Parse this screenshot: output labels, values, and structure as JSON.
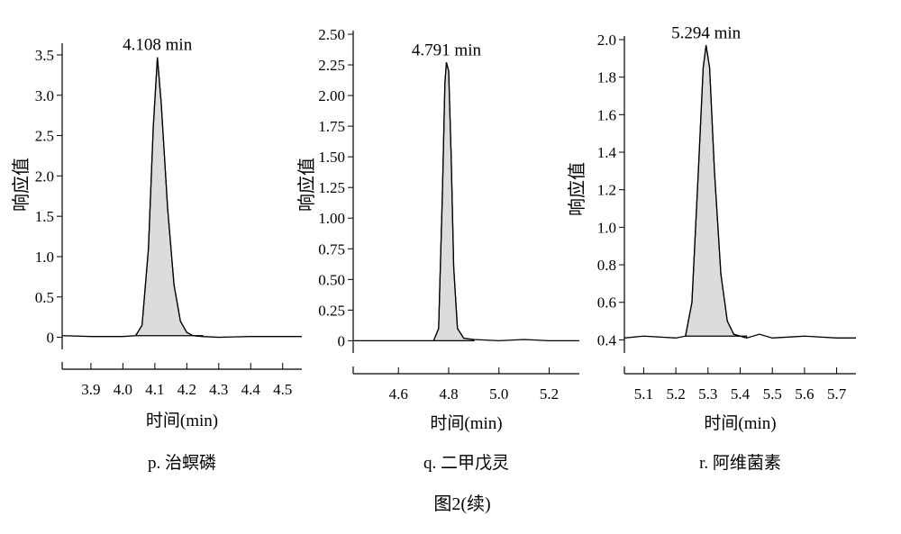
{
  "figure_caption": "图2(续)",
  "chart_data": [
    {
      "type": "line",
      "ylabel": "响应值",
      "xlabel": "时间(min)",
      "caption": "p. 治螟磷",
      "xlim": [
        3.81,
        4.56
      ],
      "ylim": [
        -0.15,
        3.6
      ],
      "xticks": [
        3.9,
        4.0,
        4.1,
        4.2,
        4.3,
        4.4,
        4.5
      ],
      "xtick_labels": [
        "3.9",
        "4.0",
        "4.1",
        "4.2",
        "4.3",
        "4.4",
        "4.5"
      ],
      "yticks": [
        0,
        0.5,
        1.0,
        1.5,
        2.0,
        2.5,
        3.0,
        3.5
      ],
      "ytick_labels": [
        "0",
        "0.5",
        "1.0",
        "1.5",
        "2.0",
        "2.5",
        "3.0",
        "3.5"
      ],
      "peak_label": "4.108 min",
      "peak_label_x": 4.108,
      "x": [
        3.81,
        3.9,
        4.0,
        4.04,
        4.06,
        4.08,
        4.095,
        4.108,
        4.12,
        4.14,
        4.16,
        4.18,
        4.2,
        4.22,
        4.25,
        4.3,
        4.4,
        4.5,
        4.56
      ],
      "y": [
        0.02,
        0.01,
        0.01,
        0.02,
        0.15,
        1.1,
        2.6,
        3.47,
        2.9,
        1.6,
        0.65,
        0.2,
        0.06,
        0.02,
        0.01,
        0.0,
        0.01,
        0.01,
        0.01
      ],
      "fill_range": [
        4.04,
        4.25
      ]
    },
    {
      "type": "line",
      "ylabel": "响应值",
      "xlabel": "时间(min)",
      "caption": "q. 二甲戊灵",
      "xlim": [
        4.42,
        5.32
      ],
      "ylim": [
        -0.1,
        2.5
      ],
      "xticks": [
        4.6,
        4.8,
        5.0,
        5.2
      ],
      "xtick_labels": [
        "4.6",
        "4.8",
        "5.0",
        "5.2"
      ],
      "yticks": [
        0,
        0.25,
        0.5,
        0.75,
        1.0,
        1.25,
        1.5,
        1.75,
        2.0,
        2.25,
        2.5
      ],
      "ytick_labels": [
        "0",
        "0.25",
        "0.50",
        "0.75",
        "1.00",
        "1.25",
        "1.50",
        "1.75",
        "2.00",
        "2.25",
        "2.50"
      ],
      "peak_label": "4.791 min",
      "peak_label_x": 4.791,
      "x": [
        4.42,
        4.6,
        4.74,
        4.76,
        4.775,
        4.785,
        4.791,
        4.8,
        4.81,
        4.82,
        4.835,
        4.86,
        4.9,
        5.0,
        5.1,
        5.2,
        5.32
      ],
      "y": [
        0.0,
        0.0,
        0.0,
        0.1,
        1.2,
        2.1,
        2.27,
        2.2,
        1.5,
        0.6,
        0.1,
        0.02,
        0.01,
        0.0,
        0.01,
        0.0,
        0.0
      ],
      "fill_range": [
        4.74,
        4.9
      ]
    },
    {
      "type": "line",
      "ylabel": "响应值",
      "xlabel": "时间(min)",
      "caption": "r. 阿维菌素",
      "xlim": [
        5.04,
        5.76
      ],
      "ylim": [
        0.33,
        2.0
      ],
      "xticks": [
        5.1,
        5.2,
        5.3,
        5.4,
        5.5,
        5.6,
        5.7
      ],
      "xtick_labels": [
        "5.1",
        "5.2",
        "5.3",
        "5.4",
        "5.5",
        "5.6",
        "5.7"
      ],
      "yticks": [
        0.4,
        0.6,
        0.8,
        1.0,
        1.2,
        1.4,
        1.6,
        1.8,
        2.0
      ],
      "ytick_labels": [
        "0.4",
        "0.6",
        "0.8",
        "1.0",
        "1.2",
        "1.4",
        "1.6",
        "1.8",
        "2.0"
      ],
      "peak_label": "5.294 min",
      "peak_label_x": 5.294,
      "x": [
        5.04,
        5.1,
        5.2,
        5.23,
        5.25,
        5.27,
        5.285,
        5.294,
        5.305,
        5.32,
        5.34,
        5.36,
        5.38,
        5.42,
        5.46,
        5.5,
        5.6,
        5.7,
        5.76
      ],
      "y": [
        0.41,
        0.42,
        0.41,
        0.42,
        0.6,
        1.3,
        1.85,
        1.97,
        1.85,
        1.3,
        0.75,
        0.5,
        0.43,
        0.41,
        0.43,
        0.41,
        0.42,
        0.41,
        0.41
      ],
      "fill_range": [
        5.22,
        5.42
      ]
    }
  ]
}
